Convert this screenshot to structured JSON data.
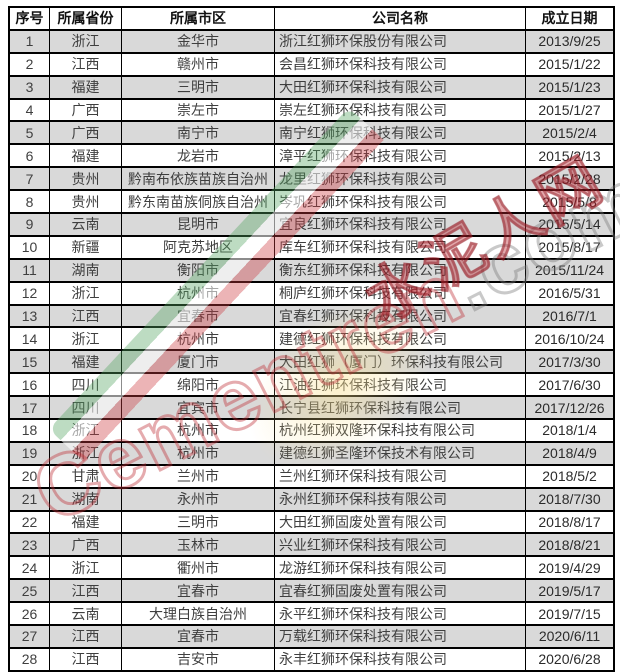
{
  "table": {
    "columns": [
      {
        "key": "index",
        "label": "序号"
      },
      {
        "key": "province",
        "label": "所属省份"
      },
      {
        "key": "city",
        "label": "所属市区"
      },
      {
        "key": "company",
        "label": "公司名称"
      },
      {
        "key": "date",
        "label": "成立日期"
      }
    ],
    "rows": [
      {
        "index": "1",
        "province": "浙江",
        "city": "金华市",
        "company": "浙江红狮环保股份有限公司",
        "date": "2013/9/25"
      },
      {
        "index": "2",
        "province": "江西",
        "city": "赣州市",
        "company": "会昌红狮环保科技有限公司",
        "date": "2015/1/22"
      },
      {
        "index": "3",
        "province": "福建",
        "city": "三明市",
        "company": "大田红狮环保科技有限公司",
        "date": "2015/1/23"
      },
      {
        "index": "4",
        "province": "广西",
        "city": "崇左市",
        "company": "崇左红狮环保科技有限公司",
        "date": "2015/1/27"
      },
      {
        "index": "5",
        "province": "广西",
        "city": "南宁市",
        "company": "南宁红狮环保科技有限公司",
        "date": "2015/2/4"
      },
      {
        "index": "6",
        "province": "福建",
        "city": "龙岩市",
        "company": "漳平红狮环保科技有限公司",
        "date": "2015/2/13"
      },
      {
        "index": "7",
        "province": "贵州",
        "city": "黔南布依族苗族自治州",
        "company": "龙里红狮环保科技有限公司",
        "date": "2015/2/28"
      },
      {
        "index": "8",
        "province": "贵州",
        "city": "黔东南苗族侗族自治州",
        "company": "岑巩红狮环保科技有限公司",
        "date": "2015/5/8"
      },
      {
        "index": "9",
        "province": "云南",
        "city": "昆明市",
        "company": "宜良红狮环保科技有限公司",
        "date": "2015/5/14"
      },
      {
        "index": "10",
        "province": "新疆",
        "city": "阿克苏地区",
        "company": "库车红狮环保科技有限公司",
        "date": "2015/8/17"
      },
      {
        "index": "11",
        "province": "湖南",
        "city": "衡阳市",
        "company": "衡东红狮环保科技有限公司",
        "date": "2015/11/24"
      },
      {
        "index": "12",
        "province": "浙江",
        "city": "杭州市",
        "company": "桐庐红狮环保科技有限公司",
        "date": "2016/5/31"
      },
      {
        "index": "13",
        "province": "江西",
        "city": "宜春市",
        "company": "宜春红狮环保科技有限公司",
        "date": "2016/7/1"
      },
      {
        "index": "14",
        "province": "浙江",
        "city": "杭州市",
        "company": "建德红狮环保科技有限公司",
        "date": "2016/10/24"
      },
      {
        "index": "15",
        "province": "福建",
        "city": "厦门市",
        "company": "大田红狮（厦门）环保科技有限公司",
        "date": "2017/3/30"
      },
      {
        "index": "16",
        "province": "四川",
        "city": "绵阳市",
        "company": "江油红狮环保科技有限公司",
        "date": "2017/6/30"
      },
      {
        "index": "17",
        "province": "四川",
        "city": "宜宾市",
        "company": "长宁县红狮环保科技有限公司",
        "date": "2017/12/26"
      },
      {
        "index": "18",
        "province": "浙江",
        "city": "杭州市",
        "company": "杭州红狮双隆环保科技有限公司",
        "date": "2018/1/4"
      },
      {
        "index": "19",
        "province": "浙江",
        "city": "杭州市",
        "company": "建德红狮圣隆环保技术有限公司",
        "date": "2018/4/9"
      },
      {
        "index": "20",
        "province": "甘肃",
        "city": "兰州市",
        "company": "兰州红狮环保科技有限公司",
        "date": "2018/5/2"
      },
      {
        "index": "21",
        "province": "湖南",
        "city": "永州市",
        "company": "永州红狮环保科技有限公司",
        "date": "2018/7/30"
      },
      {
        "index": "22",
        "province": "福建",
        "city": "三明市",
        "company": "大田红狮固废处置有限公司",
        "date": "2018/8/17"
      },
      {
        "index": "23",
        "province": "广西",
        "city": "玉林市",
        "company": "兴业红狮环保科技有限公司",
        "date": "2018/8/21"
      },
      {
        "index": "24",
        "province": "浙江",
        "city": "衢州市",
        "company": "龙游红狮环保科技有限公司",
        "date": "2019/4/29"
      },
      {
        "index": "25",
        "province": "江西",
        "city": "宜春市",
        "company": "宜春红狮固废处置有限公司",
        "date": "2019/5/17"
      },
      {
        "index": "26",
        "province": "云南",
        "city": "大理白族自治州",
        "company": "永平红狮环保科技有限公司",
        "date": "2019/7/15"
      },
      {
        "index": "27",
        "province": "江西",
        "city": "宜春市",
        "company": "万载红狮环保科技有限公司",
        "date": "2020/6/11"
      },
      {
        "index": "28",
        "province": "江西",
        "city": "吉安市",
        "company": "永丰红狮环保科技有限公司",
        "date": "2020/6/28"
      }
    ]
  },
  "watermark": {
    "cn_text": "水泥人网",
    "en_text_red": "Cementren",
    "en_text_gray": ".com"
  },
  "colors": {
    "row_shaded": "#d9d9d9",
    "row_plain": "#ffffff",
    "border": "#000000",
    "watermark_red": "#be2d34",
    "watermark_green": "#52a460",
    "watermark_gray": "#787878"
  }
}
